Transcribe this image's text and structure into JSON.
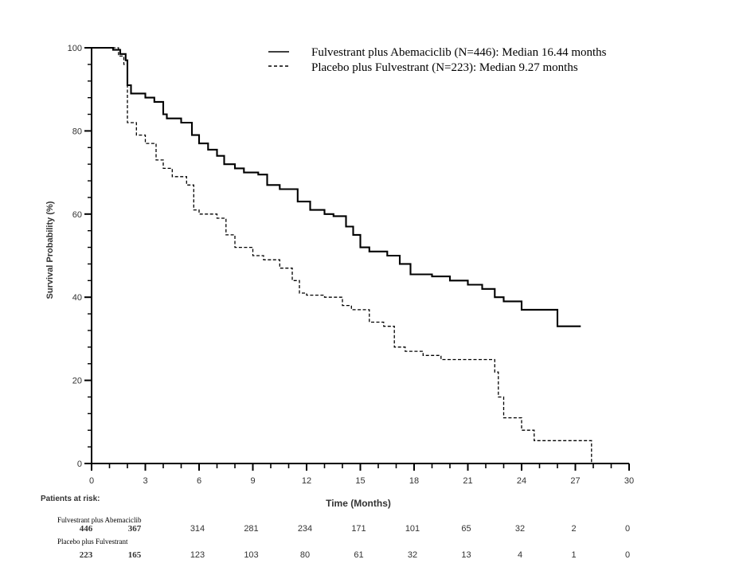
{
  "chart_data": {
    "type": "line",
    "ylabel": "Survival Probability (%)",
    "xlabel": "Time (Months)",
    "xlim": [
      0,
      30
    ],
    "ylim": [
      0,
      100
    ],
    "x_ticks": [
      "0",
      "3",
      "6",
      "9",
      "12",
      "15",
      "18",
      "21",
      "24",
      "27",
      "30"
    ],
    "y_ticks": [
      "0",
      "20",
      "40",
      "60",
      "80",
      "100"
    ],
    "grid": false,
    "legend_position": "top-right",
    "series": [
      {
        "name": "Fulvestrant plus Abemaciclib (N=446): Median 16.44 months",
        "style": "solid",
        "points": [
          [
            0,
            100
          ],
          [
            0.8,
            100
          ],
          [
            1.2,
            99.5
          ],
          [
            1.6,
            98.5
          ],
          [
            1.9,
            97
          ],
          [
            2.0,
            91
          ],
          [
            2.2,
            89
          ],
          [
            3.0,
            88
          ],
          [
            3.5,
            87
          ],
          [
            4.0,
            84
          ],
          [
            4.2,
            83
          ],
          [
            5.0,
            82
          ],
          [
            5.6,
            79
          ],
          [
            6.0,
            77
          ],
          [
            6.5,
            75.5
          ],
          [
            7.0,
            74
          ],
          [
            7.4,
            72
          ],
          [
            8.0,
            71
          ],
          [
            8.5,
            70
          ],
          [
            9.3,
            69.5
          ],
          [
            9.8,
            67
          ],
          [
            10.5,
            66
          ],
          [
            11.5,
            63
          ],
          [
            12.2,
            61
          ],
          [
            13.0,
            60
          ],
          [
            13.5,
            59.5
          ],
          [
            14.2,
            57
          ],
          [
            14.6,
            55
          ],
          [
            15.0,
            52
          ],
          [
            15.5,
            51
          ],
          [
            16.5,
            50
          ],
          [
            17.2,
            48
          ],
          [
            17.8,
            45.5
          ],
          [
            19.0,
            45
          ],
          [
            20.0,
            44
          ],
          [
            21.0,
            43
          ],
          [
            21.8,
            42
          ],
          [
            22.5,
            40
          ],
          [
            23.0,
            39
          ],
          [
            24.0,
            37
          ],
          [
            26.0,
            33
          ],
          [
            27.0,
            33
          ],
          [
            27.3,
            33
          ]
        ]
      },
      {
        "name": "Placebo plus Fulvestrant (N=223): Median 9.27 months",
        "style": "dashed",
        "points": [
          [
            0,
            100
          ],
          [
            0.8,
            100
          ],
          [
            1.5,
            98
          ],
          [
            1.8,
            96
          ],
          [
            2.0,
            82
          ],
          [
            2.5,
            79
          ],
          [
            3.0,
            77
          ],
          [
            3.6,
            73
          ],
          [
            4.0,
            71
          ],
          [
            4.5,
            69
          ],
          [
            5.3,
            67
          ],
          [
            5.7,
            61
          ],
          [
            6.0,
            60
          ],
          [
            7.0,
            59
          ],
          [
            7.5,
            55
          ],
          [
            8.0,
            52
          ],
          [
            9.0,
            50
          ],
          [
            9.6,
            49
          ],
          [
            10.5,
            47
          ],
          [
            11.2,
            44
          ],
          [
            11.6,
            41
          ],
          [
            12.0,
            40.5
          ],
          [
            13.0,
            40
          ],
          [
            14.0,
            38
          ],
          [
            14.5,
            37
          ],
          [
            15.5,
            34
          ],
          [
            16.3,
            33
          ],
          [
            16.9,
            28
          ],
          [
            17.5,
            27
          ],
          [
            18.5,
            26
          ],
          [
            19.5,
            25
          ],
          [
            22.0,
            25
          ],
          [
            22.5,
            22
          ],
          [
            22.7,
            16
          ],
          [
            23.0,
            11
          ],
          [
            24.0,
            8
          ],
          [
            24.7,
            5.5
          ],
          [
            25.5,
            5.5
          ],
          [
            27.9,
            5.5
          ],
          [
            27.9,
            0
          ]
        ]
      }
    ],
    "at_risk": {
      "heading": "Patients at risk:",
      "x": [
        0,
        3,
        6,
        9,
        12,
        15,
        18,
        21,
        24,
        27,
        30
      ],
      "groups": [
        {
          "label": "Fulvestrant plus Abemaciclib",
          "counts": [
            "446",
            "367",
            "314",
            "281",
            "234",
            "171",
            "101",
            "65",
            "32",
            "2",
            "0"
          ]
        },
        {
          "label": "Placebo plus Fulvestrant",
          "counts": [
            "223",
            "165",
            "123",
            "103",
            "80",
            "61",
            "32",
            "13",
            "4",
            "1",
            "0"
          ]
        }
      ]
    }
  }
}
